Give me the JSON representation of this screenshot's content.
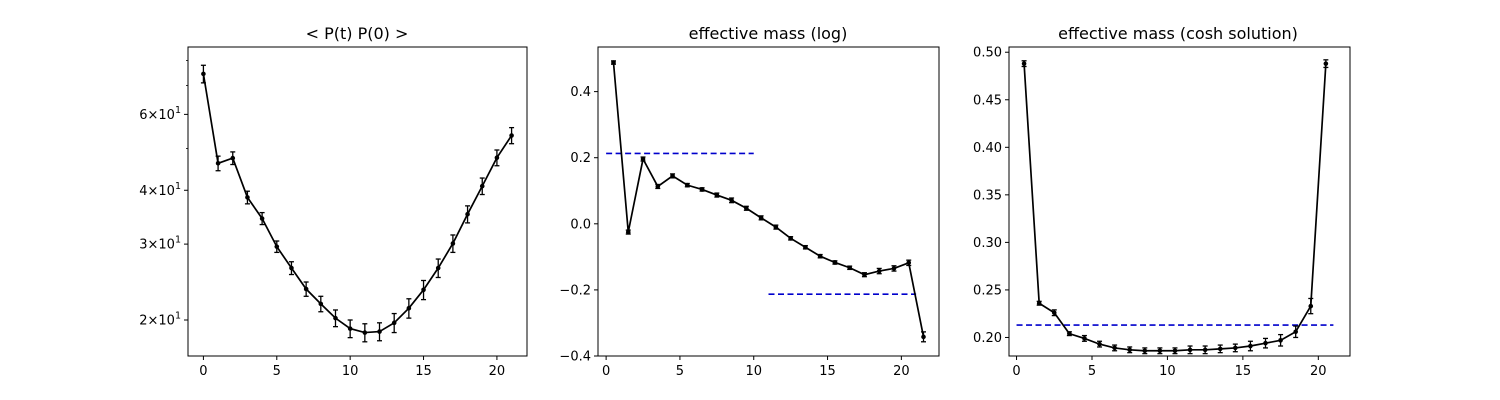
{
  "chart_data": [
    {
      "type": "line",
      "title": "< P(t)  P(0) >",
      "yscale": "log",
      "xlim": [
        -1.05,
        22.05
      ],
      "ylim": [
        16.5,
        86
      ],
      "xticks": [
        0,
        5,
        10,
        15,
        20
      ],
      "xtick_labels": [
        "0",
        "5",
        "10",
        "15",
        "20"
      ],
      "yticks": [
        20,
        30,
        40,
        60
      ],
      "ytick_labels": [
        "2×10^1",
        "3×10^1",
        "4×10^1",
        "6×10^1"
      ],
      "yticks_minor": [
        50,
        70,
        80
      ],
      "series": [
        {
          "x": [
            0,
            1,
            2,
            3,
            4,
            5,
            6,
            7,
            8,
            9,
            10,
            11,
            12,
            13,
            14,
            15,
            16,
            17,
            18,
            19,
            20,
            21
          ],
          "y": [
            74.5,
            46.2,
            47.5,
            38.5,
            34.4,
            29.6,
            26.4,
            23.6,
            21.8,
            20.2,
            19.1,
            18.7,
            18.8,
            19.7,
            21.3,
            23.5,
            26.4,
            30.1,
            35.2,
            40.9,
            47.6,
            53.6
          ],
          "yerr": [
            3.5,
            1.8,
            1.6,
            1.3,
            1.1,
            0.9,
            0.9,
            0.9,
            0.9,
            0.9,
            0.9,
            0.9,
            0.9,
            1.0,
            1.1,
            1.2,
            1.3,
            1.4,
            1.6,
            1.8,
            2.0,
            2.3
          ]
        }
      ],
      "hlines": []
    },
    {
      "type": "line",
      "title": "effective mass (log)",
      "yscale": "linear",
      "xlim": [
        -0.55,
        22.55
      ],
      "ylim": [
        -0.4,
        0.535
      ],
      "xticks": [
        0,
        5,
        10,
        15,
        20
      ],
      "xtick_labels": [
        "0",
        "5",
        "10",
        "15",
        "20"
      ],
      "yticks": [
        -0.4,
        -0.2,
        0.0,
        0.2,
        0.4
      ],
      "ytick_labels": [
        "−0.4",
        "−0.2",
        "0.0",
        "0.2",
        "0.4"
      ],
      "yticks_minor": [],
      "series": [
        {
          "x": [
            0.5,
            1.5,
            2.5,
            3.5,
            4.5,
            5.5,
            6.5,
            7.5,
            8.5,
            9.5,
            10.5,
            11.5,
            12.5,
            13.5,
            14.5,
            15.5,
            16.5,
            17.5,
            18.5,
            19.5,
            20.5,
            21.5
          ],
          "y": [
            0.488,
            -0.025,
            0.196,
            0.113,
            0.145,
            0.117,
            0.104,
            0.087,
            0.071,
            0.047,
            0.018,
            -0.01,
            -0.044,
            -0.071,
            -0.098,
            -0.117,
            -0.133,
            -0.154,
            -0.143,
            -0.135,
            -0.118,
            -0.342
          ],
          "yerr": [
            0.005,
            0.006,
            0.006,
            0.006,
            0.006,
            0.005,
            0.005,
            0.006,
            0.007,
            0.006,
            0.006,
            0.006,
            0.005,
            0.005,
            0.005,
            0.005,
            0.005,
            0.006,
            0.008,
            0.008,
            0.008,
            0.015
          ]
        }
      ],
      "hlines": [
        {
          "y": 0.213,
          "xmin": 0,
          "xmax": 10,
          "color": "#0000cc"
        },
        {
          "y": -0.213,
          "xmin": 11,
          "xmax": 21,
          "color": "#0000cc"
        }
      ]
    },
    {
      "type": "line",
      "title": "effective mass (cosh solution)",
      "yscale": "linear",
      "xlim": [
        -0.5,
        22.1
      ],
      "ylim": [
        0.1805,
        0.5055
      ],
      "xticks": [
        0,
        5,
        10,
        15,
        20
      ],
      "xtick_labels": [
        "0",
        "5",
        "10",
        "15",
        "20"
      ],
      "yticks": [
        0.2,
        0.25,
        0.3,
        0.35,
        0.4,
        0.45,
        0.5
      ],
      "ytick_labels": [
        "0.20",
        "0.25",
        "0.30",
        "0.35",
        "0.40",
        "0.45",
        "0.50"
      ],
      "yticks_minor": [],
      "series": [
        {
          "x": [
            0.5,
            1.5,
            2.5,
            3.5,
            4.5,
            5.5,
            6.5,
            7.5,
            8.5,
            9.5,
            10.5,
            11.5,
            12.5,
            13.5,
            14.5,
            15.5,
            16.5,
            17.5,
            18.5,
            19.5,
            20.5
          ],
          "y": [
            0.488,
            0.236,
            0.226,
            0.204,
            0.199,
            0.193,
            0.189,
            0.187,
            0.186,
            0.186,
            0.186,
            0.187,
            0.187,
            0.188,
            0.189,
            0.191,
            0.194,
            0.197,
            0.206,
            0.233,
            0.488
          ],
          "yerr": [
            0.003,
            0.002,
            0.003,
            0.002,
            0.003,
            0.003,
            0.003,
            0.003,
            0.003,
            0.003,
            0.003,
            0.004,
            0.004,
            0.004,
            0.004,
            0.005,
            0.005,
            0.006,
            0.006,
            0.008,
            0.004
          ]
        }
      ],
      "hlines": [
        {
          "y": 0.213,
          "xmin": 0,
          "xmax": 21,
          "color": "#0000cc"
        }
      ]
    }
  ]
}
